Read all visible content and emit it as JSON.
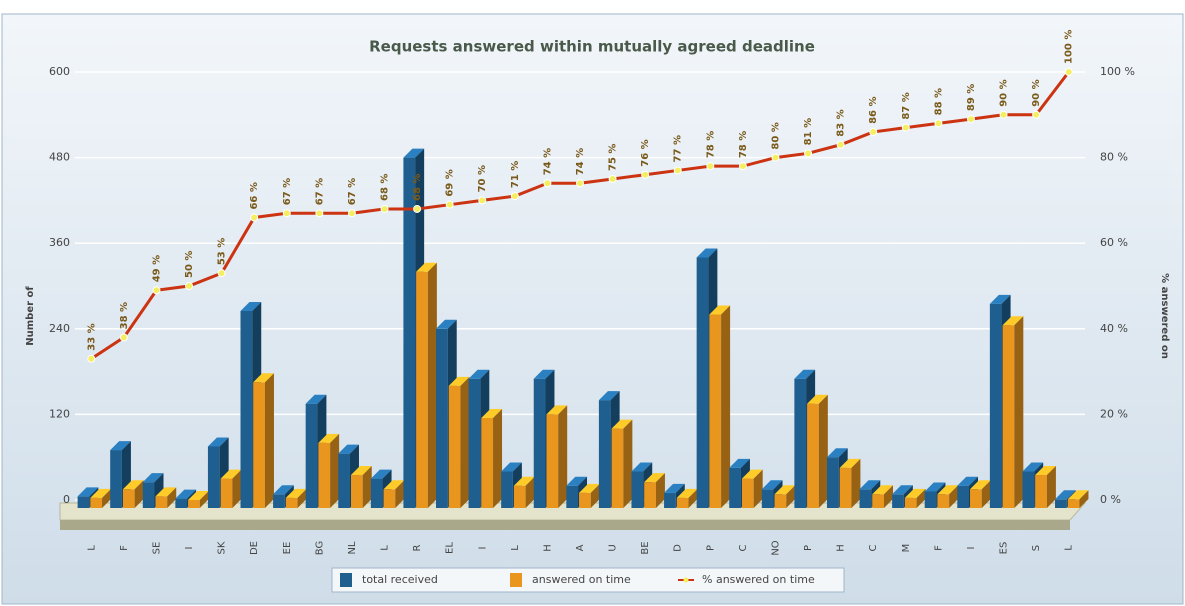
{
  "chart_data": {
    "type": "bar",
    "title": "Requests answered within mutually agreed deadline",
    "y_label": "Number of",
    "y2_label": "% answered on",
    "categories": [
      "L",
      "F",
      "SE",
      "I",
      "SK",
      "DE",
      "EE",
      "BG",
      "NL",
      "L",
      "R",
      "EL",
      "I",
      "L",
      "H",
      "A",
      "U",
      "BE",
      "D",
      "P",
      "C",
      "NO",
      "P",
      "H",
      "C",
      "M",
      "F",
      "I",
      "ES",
      "S",
      "L"
    ],
    "series": [
      {
        "name": "total received",
        "color": "#1f5f8f",
        "values": [
          5,
          70,
          25,
          2,
          75,
          265,
          8,
          135,
          65,
          30,
          480,
          240,
          170,
          40,
          170,
          20,
          140,
          40,
          10,
          340,
          45,
          15,
          170,
          60,
          15,
          8,
          12,
          20,
          275,
          40,
          1
        ]
      },
      {
        "name": "answered on time",
        "color": "#e8961e",
        "values": [
          3,
          15,
          5,
          0,
          30,
          165,
          3,
          80,
          35,
          15,
          320,
          160,
          115,
          20,
          120,
          10,
          100,
          25,
          3,
          260,
          30,
          8,
          135,
          45,
          8,
          3,
          8,
          15,
          245,
          35,
          1
        ]
      },
      {
        "name": "% answered on time",
        "color": "#cc3311",
        "type": "line",
        "axis": "y2",
        "values": [
          33,
          38,
          49,
          50,
          53,
          66,
          67,
          67,
          67,
          68,
          68,
          69,
          70,
          71,
          74,
          74,
          75,
          76,
          77,
          78,
          78,
          80,
          81,
          83,
          86,
          87,
          88,
          89,
          90,
          90,
          100
        ],
        "value_labels": [
          "33 %",
          "38 %",
          "49 %",
          "50 %",
          "53 %",
          "66 %",
          "67 %",
          "67 %",
          "67 %",
          "68 %",
          "68 %",
          "69 %",
          "70 %",
          "71 %",
          "74 %",
          "74 %",
          "75 %",
          "76 %",
          "77 %",
          "78 %",
          "78 %",
          "80 %",
          "81 %",
          "83 %",
          "86 %",
          "87 %",
          "88 %",
          "89 %",
          "90 %",
          "90 %",
          "100 %"
        ]
      }
    ],
    "ylim": [
      0,
      600
    ],
    "yticks": [
      0,
      120,
      240,
      360,
      480,
      600
    ],
    "y2lim": [
      0,
      100
    ],
    "y2ticks": [
      {
        "value": 0,
        "label": "0 %"
      },
      {
        "value": 20,
        "label": "20 %"
      },
      {
        "value": 40,
        "label": "40 %"
      },
      {
        "value": 60,
        "label": "60 %"
      },
      {
        "value": 80,
        "label": "80 %"
      },
      {
        "value": 100,
        "label": "100 %"
      }
    ],
    "grid": true,
    "legend": "bottom"
  }
}
